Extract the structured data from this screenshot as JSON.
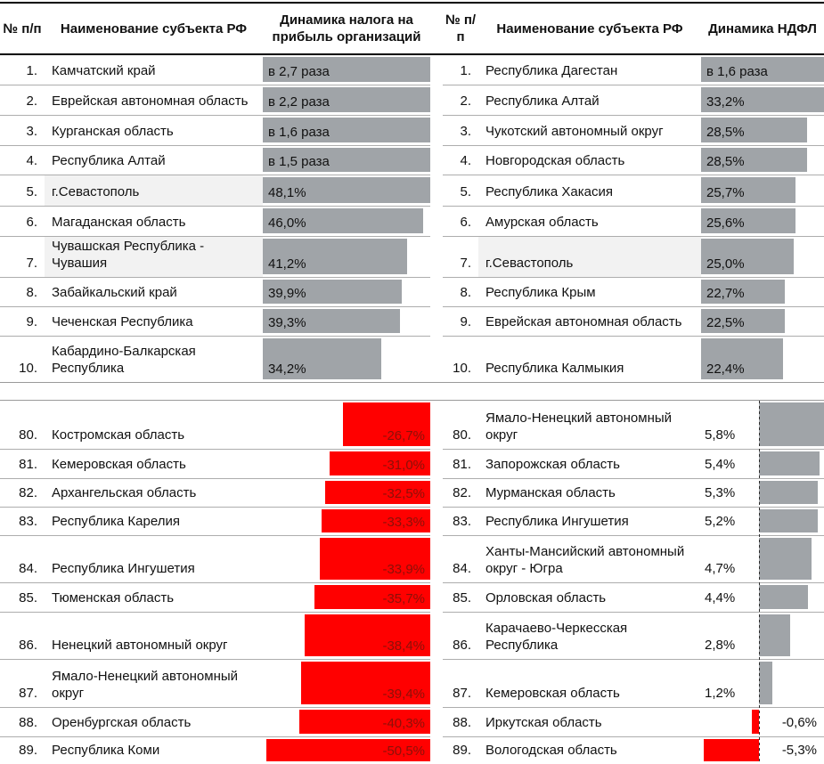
{
  "header": {
    "left": {
      "num": "№ п/п",
      "name": "Наименование субъекта РФ",
      "value": "Динамика налога на прибыль организаций"
    },
    "right": {
      "num": "№ п/п",
      "name": "Наименование субъекта РФ",
      "value": "Динамика НДФЛ"
    }
  },
  "colors": {
    "bar_positive_gray": "#a0a4a8",
    "bar_negative_red": "#ff0000",
    "negative_label_text": "#8b1008",
    "highlight_cell": "#f2f2f2",
    "row_separator": "#adadad",
    "section_line": "#9a9a9a",
    "header_border": "#000000",
    "zero_axis": "#2b2b2b",
    "text": "#111111"
  },
  "tables": {
    "top_left": {
      "rows": [
        {
          "num": "1.",
          "name": "Камчатский край",
          "value": "в 2,7 раза",
          "bar_pct": 100,
          "highlight": false
        },
        {
          "num": "2.",
          "name": "Еврейская автономная область",
          "value": "в 2,2 раза",
          "bar_pct": 100,
          "highlight": false
        },
        {
          "num": "3.",
          "name": "Курганская область",
          "value": "в 1,6 раза",
          "bar_pct": 100,
          "highlight": false
        },
        {
          "num": "4.",
          "name": "Республика Алтай",
          "value": "в 1,5 раза",
          "bar_pct": 100,
          "highlight": false
        },
        {
          "num": "5.",
          "name": "г.Севастополь",
          "value": "48,1%",
          "bar_pct": 100,
          "highlight": true
        },
        {
          "num": "6.",
          "name": "Магаданская область",
          "value": "46,0%",
          "bar_pct": 96,
          "highlight": false
        },
        {
          "num": "7.",
          "name": "Чувашская Республика - Чувашия",
          "value": "41,2%",
          "bar_pct": 86,
          "highlight": true
        },
        {
          "num": "8.",
          "name": "Забайкальский край",
          "value": "39,9%",
          "bar_pct": 83,
          "highlight": false
        },
        {
          "num": "9.",
          "name": "Чеченская Республика",
          "value": "39,3%",
          "bar_pct": 82,
          "highlight": false
        },
        {
          "num": "10.",
          "name": "Кабардино-Балкарская Республика",
          "value": "34,2%",
          "bar_pct": 71,
          "highlight": false
        }
      ]
    },
    "top_right": {
      "rows": [
        {
          "num": "1.",
          "name": "Республика Дагестан",
          "value": "в 1,6 раза",
          "bar_pct": 100,
          "highlight": false
        },
        {
          "num": "2.",
          "name": "Республика Алтай",
          "value": "33,2%",
          "bar_pct": 100,
          "highlight": false
        },
        {
          "num": "3.",
          "name": "Чукотский автономный округ",
          "value": "28,5%",
          "bar_pct": 86,
          "highlight": false
        },
        {
          "num": "4.",
          "name": "Новгородская область",
          "value": "28,5%",
          "bar_pct": 86,
          "highlight": false
        },
        {
          "num": "5.",
          "name": "Республика Хакасия",
          "value": "25,7%",
          "bar_pct": 77,
          "highlight": false
        },
        {
          "num": "6.",
          "name": "Амурская область",
          "value": "25,6%",
          "bar_pct": 77,
          "highlight": false
        },
        {
          "num": "7.",
          "name": "г.Севастополь",
          "value": "25,0%",
          "bar_pct": 75,
          "highlight": true
        },
        {
          "num": "8.",
          "name": "Республика Крым",
          "value": "22,7%",
          "bar_pct": 68,
          "highlight": false
        },
        {
          "num": "9.",
          "name": "Еврейская автономная область",
          "value": "22,5%",
          "bar_pct": 68,
          "highlight": false
        },
        {
          "num": "10.",
          "name": "Республика Калмыкия",
          "value": "22,4%",
          "bar_pct": 67,
          "highlight": false
        }
      ]
    },
    "bottom_left": {
      "rows": [
        {
          "num": "80.",
          "name": "Костромская область",
          "value": "-26,7%",
          "bar_pct": 52,
          "highlight": false
        },
        {
          "num": "81.",
          "name": "Кемеровская область",
          "value": "-31,0%",
          "bar_pct": 60,
          "highlight": false
        },
        {
          "num": "82.",
          "name": "Архангельская область",
          "value": "-32,5%",
          "bar_pct": 63,
          "highlight": false
        },
        {
          "num": "83.",
          "name": "Республика Карелия",
          "value": "-33,3%",
          "bar_pct": 65,
          "highlight": false
        },
        {
          "num": "84.",
          "name": "Республика Ингушетия",
          "value": "-33,9%",
          "bar_pct": 66,
          "highlight": false
        },
        {
          "num": "85.",
          "name": "Тюменская область",
          "value": "-35,7%",
          "bar_pct": 69,
          "highlight": false
        },
        {
          "num": "86.",
          "name": "Ненецкий автономный округ",
          "value": "-38,4%",
          "bar_pct": 75,
          "highlight": false
        },
        {
          "num": "87.",
          "name": "Ямало-Ненецкий автономный округ",
          "value": "-39,4%",
          "bar_pct": 77,
          "highlight": false
        },
        {
          "num": "88.",
          "name": "Оренбургская область",
          "value": "-40,3%",
          "bar_pct": 78,
          "highlight": false
        },
        {
          "num": "89.",
          "name": "Республика Коми",
          "value": "-50,5%",
          "bar_pct": 98,
          "highlight": false
        }
      ]
    },
    "bottom_right": {
      "rows": [
        {
          "num": "80.",
          "name": "Ямало-Ненецкий автономный округ",
          "value": "5,8%",
          "bar_pct": 100,
          "negative": false,
          "highlight": false
        },
        {
          "num": "81.",
          "name": "Запорожская область",
          "value": "5,4%",
          "bar_pct": 93,
          "negative": false,
          "highlight": false
        },
        {
          "num": "82.",
          "name": "Мурманская область",
          "value": "5,3%",
          "bar_pct": 91,
          "negative": false,
          "highlight": false
        },
        {
          "num": "83.",
          "name": "Республика Ингушетия",
          "value": "5,2%",
          "bar_pct": 90,
          "negative": false,
          "highlight": false
        },
        {
          "num": "84.",
          "name": "Ханты-Мансийский автономный округ - Югра",
          "value": "4,7%",
          "bar_pct": 81,
          "negative": false,
          "highlight": false
        },
        {
          "num": "85.",
          "name": "Орловская область",
          "value": "4,4%",
          "bar_pct": 76,
          "negative": false,
          "highlight": false
        },
        {
          "num": "86.",
          "name": "Карачаево-Черкесская Республика",
          "value": "2,8%",
          "bar_pct": 48,
          "negative": false,
          "highlight": false
        },
        {
          "num": "87.",
          "name": "Кемеровская область",
          "value": "1,2%",
          "bar_pct": 21,
          "negative": false,
          "highlight": false
        },
        {
          "num": "88.",
          "name": "Иркутская область",
          "value": "-0,6%",
          "bar_pct": 12,
          "negative": true,
          "highlight": false
        },
        {
          "num": "89.",
          "name": "Вологодская область",
          "value": "-5,3%",
          "bar_pct": 95,
          "negative": true,
          "highlight": false
        }
      ]
    }
  },
  "chart_data": [
    {
      "type": "bar",
      "title": "Динамика налога на прибыль организаций",
      "ranks": [
        1,
        2,
        3,
        4,
        5,
        6,
        7,
        8,
        9,
        10,
        80,
        81,
        82,
        83,
        84,
        85,
        86,
        87,
        88,
        89
      ],
      "categories": [
        "Камчатский край",
        "Еврейская автономная область",
        "Курганская область",
        "Республика Алтай",
        "г.Севастополь",
        "Магаданская область",
        "Чувашская Республика - Чувашия",
        "Забайкальский край",
        "Чеченская Республика",
        "Кабардино-Балкарская Республика",
        "Костромская область",
        "Кемеровская область",
        "Архангельская область",
        "Республика Карелия",
        "Республика Ингушетия",
        "Тюменская область",
        "Ненецкий автономный округ",
        "Ямало-Ненецкий автономный округ",
        "Оренбургская область",
        "Республика Коми"
      ],
      "values": [
        170,
        120,
        60,
        50,
        48.1,
        46.0,
        41.2,
        39.9,
        39.3,
        34.2,
        -26.7,
        -31.0,
        -32.5,
        -33.3,
        -33.9,
        -35.7,
        -38.4,
        -39.4,
        -40.3,
        -50.5
      ],
      "value_labels": [
        "в 2,7 раза",
        "в 2,2 раза",
        "в 1,6 раза",
        "в 1,5 раза",
        "48,1%",
        "46,0%",
        "41,2%",
        "39,9%",
        "39,3%",
        "34,2%",
        "-26,7%",
        "-31,0%",
        "-32,5%",
        "-33,3%",
        "-33,9%",
        "-35,7%",
        "-38,4%",
        "-39,4%",
        "-40,3%",
        "-50,5%"
      ],
      "unit": "%",
      "positive_color": "#a0a4a8",
      "negative_color": "#ff0000",
      "grid": false,
      "legend": "none"
    },
    {
      "type": "bar",
      "title": "Динамика НДФЛ",
      "ranks": [
        1,
        2,
        3,
        4,
        5,
        6,
        7,
        8,
        9,
        10,
        80,
        81,
        82,
        83,
        84,
        85,
        86,
        87,
        88,
        89
      ],
      "categories": [
        "Республика Дагестан",
        "Республика Алтай",
        "Чукотский автономный округ",
        "Новгородская область",
        "Республика Хакасия",
        "Амурская область",
        "г.Севастополь",
        "Республика Крым",
        "Еврейская автономная область",
        "Республика Калмыкия",
        "Ямало-Ненецкий автономный округ",
        "Запорожская область",
        "Мурманская область",
        "Республика Ингушетия",
        "Ханты-Мансийский автономный округ - Югра",
        "Орловская область",
        "Карачаево-Черкесская Республика",
        "Кемеровская область",
        "Иркутская область",
        "Вологодская область"
      ],
      "values": [
        60,
        33.2,
        28.5,
        28.5,
        25.7,
        25.6,
        25.0,
        22.7,
        22.5,
        22.4,
        5.8,
        5.4,
        5.3,
        5.2,
        4.7,
        4.4,
        2.8,
        1.2,
        -0.6,
        -5.3
      ],
      "value_labels": [
        "в 1,6 раза",
        "33,2%",
        "28,5%",
        "28,5%",
        "25,7%",
        "25,6%",
        "25,0%",
        "22,7%",
        "22,5%",
        "22,4%",
        "5,8%",
        "5,4%",
        "5,3%",
        "5,2%",
        "4,7%",
        "4,4%",
        "2,8%",
        "1,2%",
        "-0,6%",
        "-5,3%"
      ],
      "unit": "%",
      "positive_color": "#a0a4a8",
      "negative_color": "#ff0000",
      "grid": false,
      "legend": "none"
    }
  ]
}
